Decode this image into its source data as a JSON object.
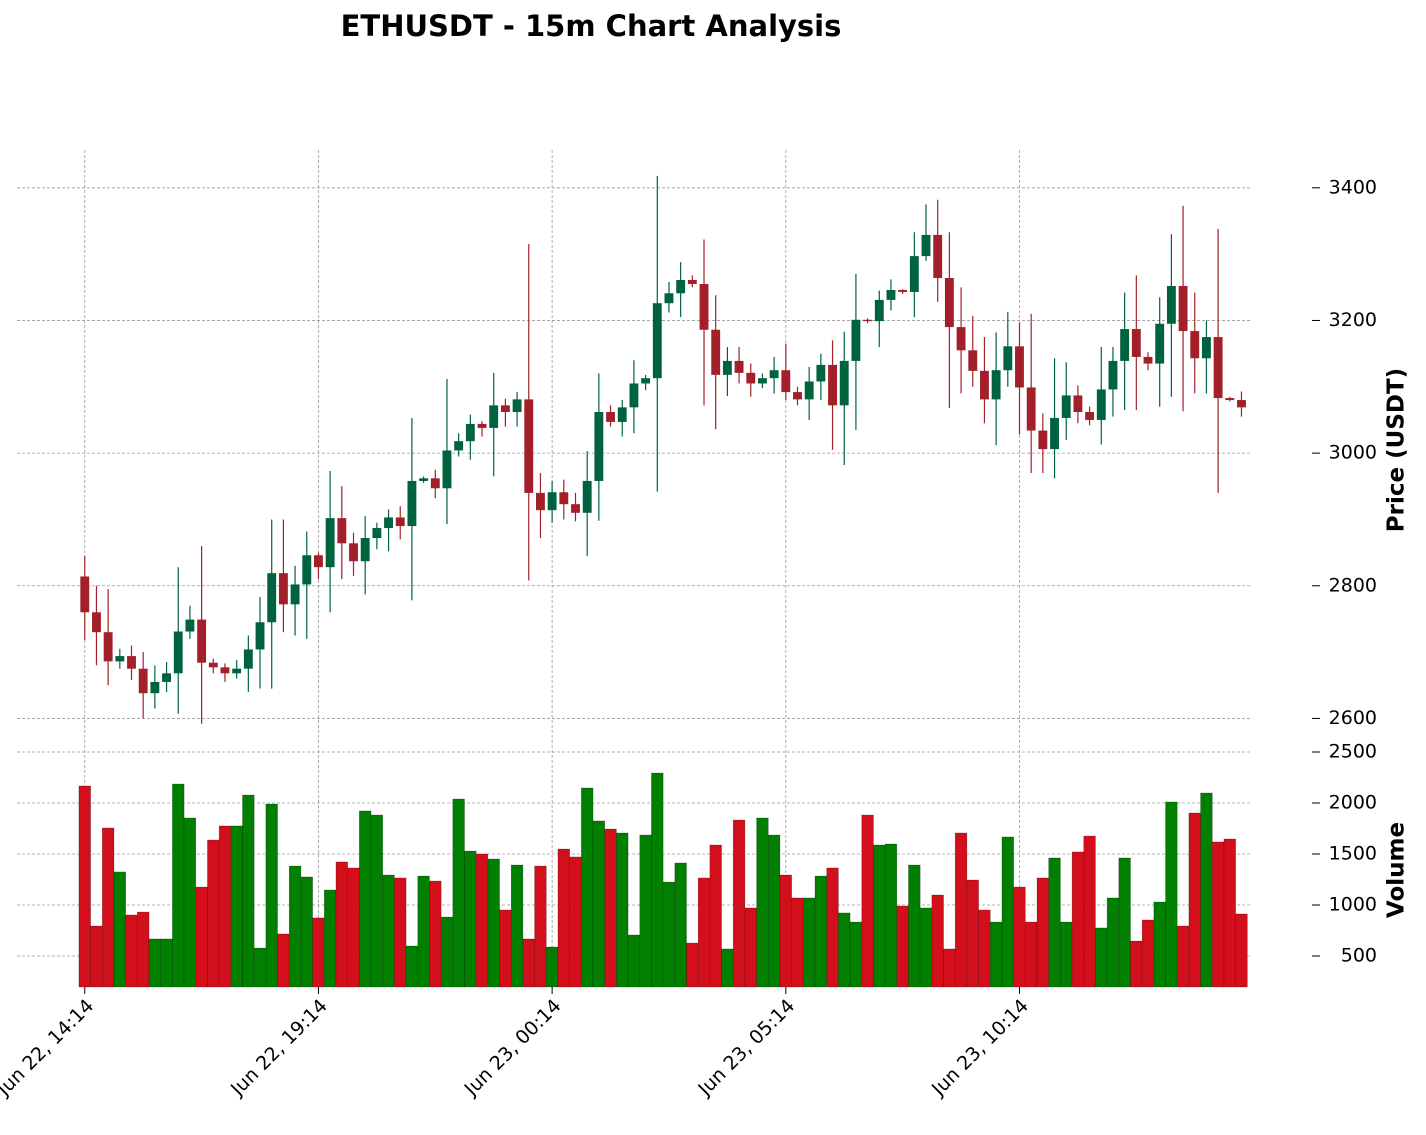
{
  "chart_data": {
    "type": "candlestick",
    "title": "ETHUSDT - 15m Chart Analysis",
    "ylabel": "Price (USDT)",
    "y2label": "Volume",
    "open": [
      2814,
      2760,
      2730,
      2686,
      2694,
      2675,
      2638,
      2655,
      2668,
      2731,
      2749,
      2684,
      2677,
      2668,
      2675,
      2704,
      2745,
      2819,
      2772,
      2802,
      2846,
      2828,
      2902,
      2864,
      2837,
      2872,
      2887,
      2903,
      2890,
      2958,
      2962,
      2947,
      3004,
      3018,
      3044,
      3038,
      3072,
      3062,
      3081,
      2940,
      2914,
      2941,
      2923,
      2910,
      2958,
      3062,
      3047,
      3069,
      3105,
      3113,
      3226,
      3241,
      3261,
      3255,
      3186,
      3118,
      3139,
      3121,
      3105,
      3113,
      3125,
      3092,
      3081,
      3108,
      3133,
      3072,
      3139,
      3201,
      3199,
      3231,
      3246,
      3243,
      3297,
      3329,
      3264,
      3190,
      3155,
      3124,
      3081,
      3125,
      3161,
      3099,
      3034,
      3006,
      3053,
      3087,
      3062,
      3050,
      3096,
      3139,
      3187,
      3145,
      3135,
      3195,
      3252,
      3184,
      3143,
      3175,
      3083,
      3080
    ],
    "high": [
      2845,
      2800,
      2795,
      2705,
      2710,
      2700,
      2680,
      2685,
      2828,
      2770,
      2860,
      2690,
      2683,
      2688,
      2725,
      2783,
      2900,
      2900,
      2830,
      2882,
      2850,
      2973,
      2950,
      2880,
      2905,
      2895,
      2915,
      2920,
      3053,
      2965,
      2975,
      3112,
      3030,
      3058,
      3048,
      3121,
      3082,
      3092,
      3315,
      2970,
      2958,
      2960,
      2940,
      3003,
      3120,
      3072,
      3080,
      3140,
      3118,
      3418,
      3258,
      3288,
      3268,
      3322,
      3238,
      3160,
      3160,
      3135,
      3120,
      3145,
      3165,
      3100,
      3130,
      3150,
      3170,
      3183,
      3270,
      3203,
      3245,
      3262,
      3247,
      3333,
      3375,
      3382,
      3333,
      3250,
      3207,
      3175,
      3182,
      3213,
      3197,
      3210,
      3060,
      3143,
      3137,
      3102,
      3070,
      3160,
      3160,
      3242,
      3268,
      3152,
      3235,
      3330,
      3373,
      3242,
      3200,
      3338,
      3085,
      3093
    ],
    "low": [
      2718,
      2680,
      2650,
      2675,
      2658,
      2600,
      2615,
      2640,
      2607,
      2720,
      2592,
      2668,
      2655,
      2660,
      2640,
      2645,
      2645,
      2730,
      2725,
      2720,
      2810,
      2760,
      2810,
      2815,
      2787,
      2855,
      2852,
      2870,
      2778,
      2955,
      2932,
      2893,
      2995,
      2990,
      3025,
      2965,
      3040,
      3040,
      2808,
      2872,
      2895,
      2900,
      2897,
      2845,
      2898,
      3040,
      3025,
      3030,
      3095,
      2942,
      3212,
      3205,
      3250,
      3072,
      3036,
      3086,
      3105,
      3085,
      3098,
      3090,
      3080,
      3072,
      3050,
      3080,
      3005,
      2982,
      3035,
      3196,
      3160,
      3215,
      3240,
      3205,
      3290,
      3228,
      3068,
      3090,
      3100,
      3045,
      3012,
      3100,
      3028,
      2970,
      2970,
      2962,
      3020,
      3045,
      3042,
      3013,
      3055,
      3065,
      3065,
      3125,
      3070,
      3085,
      3063,
      3090,
      3090,
      2940,
      3078,
      3055
    ],
    "close": [
      2760,
      2730,
      2686,
      2694,
      2675,
      2638,
      2655,
      2668,
      2731,
      2749,
      2684,
      2677,
      2668,
      2675,
      2704,
      2745,
      2819,
      2772,
      2802,
      2846,
      2828,
      2902,
      2864,
      2837,
      2872,
      2887,
      2903,
      2890,
      2958,
      2962,
      2947,
      3004,
      3018,
      3044,
      3038,
      3072,
      3062,
      3081,
      2940,
      2914,
      2941,
      2923,
      2910,
      2958,
      3062,
      3047,
      3069,
      3105,
      3113,
      3226,
      3241,
      3261,
      3255,
      3186,
      3118,
      3139,
      3121,
      3105,
      3113,
      3125,
      3092,
      3081,
      3108,
      3133,
      3072,
      3139,
      3201,
      3199,
      3231,
      3246,
      3243,
      3297,
      3329,
      3264,
      3190,
      3155,
      3124,
      3081,
      3125,
      3161,
      3099,
      3034,
      3006,
      3053,
      3087,
      3062,
      3050,
      3096,
      3139,
      3187,
      3145,
      3135,
      3195,
      3252,
      3184,
      3143,
      3175,
      3083,
      3080,
      3069
    ],
    "volume": [
      2167,
      794,
      1755,
      1324,
      902,
      931,
      667,
      667,
      2186,
      1853,
      1176,
      1637,
      1775,
      1775,
      2078,
      578,
      1990,
      716,
      1382,
      1275,
      873,
      1147,
      1422,
      1363,
      1922,
      1882,
      1294,
      1265,
      598,
      1284,
      1235,
      882,
      2039,
      1529,
      1500,
      1451,
      951,
      1392,
      667,
      1382,
      588,
      1549,
      1471,
      2147,
      1824,
      1745,
      1706,
      706,
      1686,
      2294,
      1225,
      1412,
      627,
      1265,
      1588,
      569,
      1833,
      971,
      1853,
      1686,
      1294,
      1069,
      1069,
      1284,
      1363,
      922,
      833,
      1882,
      1588,
      1598,
      990,
      1392,
      971,
      1098,
      569,
      1706,
      1245,
      951,
      833,
      1667,
      1176,
      833,
      1265,
      1461,
      833,
      1520,
      1676,
      775,
      1069,
      1461,
      647,
      853,
      1029,
      2010,
      794,
      1902,
      2098,
      1618,
      1647,
      912
    ],
    "up_color": "#006340",
    "down_color": "#a3202a",
    "volume_up_color": "#007f00",
    "volume_down_color": "#d30f1b",
    "xlim": [
      -5.8,
      99.9
    ],
    "xticks": [
      {
        "value": 0,
        "label": "Jun 22, 14:14"
      },
      {
        "value": 20,
        "label": "Jun 22, 19:14"
      },
      {
        "value": 40,
        "label": "Jun 23, 00:14"
      },
      {
        "value": 60,
        "label": "Jun 23, 05:14"
      },
      {
        "value": 80,
        "label": "Jun 23, 10:14"
      }
    ],
    "ylim": [
      2575,
      3457
    ],
    "yticks": [
      2600,
      2800,
      3000,
      3200,
      3400
    ],
    "y2lim": [
      196,
      2500
    ],
    "y2ticks": [
      500,
      1000,
      1500,
      2000,
      2500
    ],
    "grid": true
  }
}
